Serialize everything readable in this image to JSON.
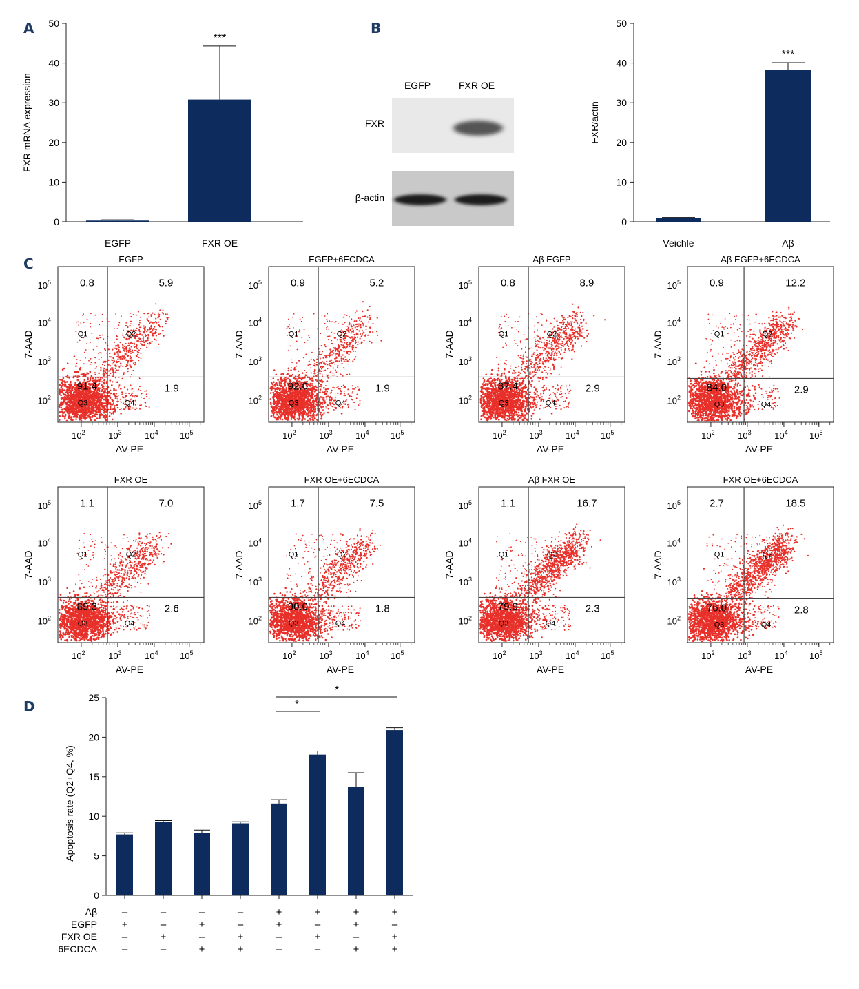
{
  "panels": {
    "A": "A",
    "B": "B",
    "C": "C",
    "D": "D"
  },
  "panel_A": {
    "chart_data": {
      "type": "bar",
      "categories": [
        "EGFP",
        "FXR OE"
      ],
      "values": [
        0.3,
        30.8
      ],
      "errors": [
        0.2,
        13.5
      ],
      "ylabel": "FXR mRNA expression",
      "ylim": [
        0,
        50
      ],
      "yticks": [
        0,
        10,
        20,
        30,
        40,
        50
      ],
      "significance": "***",
      "bar_color": "#0d2b5c"
    }
  },
  "panel_B_blot": {
    "lane_labels": [
      "EGFP",
      "FXR OE"
    ],
    "band_labels": [
      "FXR",
      "β-actin"
    ]
  },
  "panel_B_chart": {
    "chart_data": {
      "type": "bar",
      "categories": [
        "Veichle",
        "Aβ"
      ],
      "values": [
        1.0,
        38.3
      ],
      "errors": [
        0.1,
        1.8
      ],
      "ylabel": "FXR/actin",
      "ylim": [
        0,
        50
      ],
      "yticks": [
        0,
        10,
        20,
        30,
        40,
        50
      ],
      "significance": "***",
      "bar_color": "#0d2b5c"
    }
  },
  "panel_C": {
    "xlabel": "AV-PE",
    "ylabel": "7-AAD",
    "quadrant_labels": [
      "Q1",
      "Q2",
      "Q3",
      "Q4"
    ],
    "dot_color": "#e8302a",
    "plots": [
      {
        "title": "EGFP",
        "q1": "0.8",
        "q2": "5.9",
        "q3": "91.4",
        "q4": "1.9"
      },
      {
        "title": "EGFP+6ECDCA",
        "q1": "0.9",
        "q2": "5.2",
        "q3": "92.0",
        "q4": "1.9"
      },
      {
        "title": "Aβ EGFP",
        "q1": "0.8",
        "q2": "8.9",
        "q3": "87.4",
        "q4": "2.9"
      },
      {
        "title": "Aβ EGFP+6ECDCA",
        "q1": "0.9",
        "q2": "12.2",
        "q3": "84.0",
        "q4": "2.9"
      },
      {
        "title": "FXR OE",
        "q1": "1.1",
        "q2": "7.0",
        "q3": "89.3",
        "q4": "2.6"
      },
      {
        "title": "FXR OE+6ECDCA",
        "q1": "1.7",
        "q2": "7.5",
        "q3": "90.0",
        "q4": "1.8"
      },
      {
        "title": "Aβ FXR OE",
        "q1": "1.1",
        "q2": "16.7",
        "q3": "79.9",
        "q4": "2.3"
      },
      {
        "title": "FXR OE+6ECDCA",
        "q1": "2.7",
        "q2": "18.5",
        "q3": "76.0",
        "q4": "2.8"
      }
    ]
  },
  "panel_D": {
    "chart_data": {
      "type": "bar",
      "values": [
        7.7,
        9.3,
        7.9,
        9.1,
        11.6,
        17.8,
        13.7,
        20.9
      ],
      "errors": [
        0.2,
        0.15,
        0.35,
        0.2,
        0.5,
        0.45,
        1.8,
        0.3
      ],
      "ylabel": "Apoptosis rate (Q2+Q4, %)",
      "ylim": [
        0,
        25
      ],
      "yticks": [
        0,
        5,
        10,
        15,
        20,
        25
      ],
      "bar_color": "#0d2b5c",
      "significance": [
        {
          "from": 4,
          "to": 5,
          "label": "*"
        },
        {
          "from": 4,
          "to": 7,
          "label": "*"
        }
      ],
      "conditions": [
        {
          "name": "Aβ",
          "values": [
            "–",
            "–",
            "–",
            "–",
            "+",
            "+",
            "+",
            "+"
          ]
        },
        {
          "name": "EGFP",
          "values": [
            "+",
            "–",
            "+",
            "–",
            "+",
            "–",
            "+",
            "–"
          ]
        },
        {
          "name": "FXR OE",
          "values": [
            "–",
            "+",
            "–",
            "+",
            "–",
            "+",
            "–",
            "+"
          ]
        },
        {
          "name": "6ECDCA",
          "values": [
            "–",
            "–",
            "+",
            "+",
            "–",
            "–",
            "+",
            "+"
          ]
        }
      ]
    }
  }
}
